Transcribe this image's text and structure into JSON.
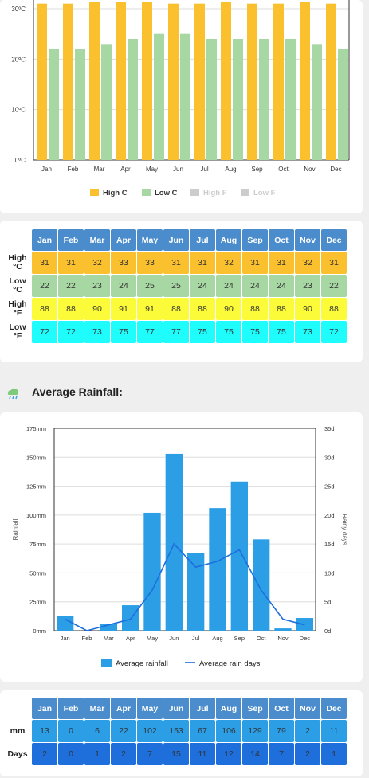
{
  "months": [
    "Jan",
    "Feb",
    "Mar",
    "Apr",
    "May",
    "Jun",
    "Jul",
    "Aug",
    "Sep",
    "Oct",
    "Nov",
    "Dec"
  ],
  "temp_section": {
    "row_labels": {
      "high_c": [
        "High",
        "°C"
      ],
      "low_c": [
        "Low",
        "°C"
      ],
      "high_f": [
        "High",
        "°F"
      ],
      "low_f": [
        "Low",
        "°F"
      ]
    }
  },
  "rain_section": {
    "title": "Average Rainfall:",
    "row_labels": {
      "mm": "mm",
      "days": "Days"
    }
  },
  "colors": {
    "high_c": "#fbc02d",
    "low_c": "#a7d7a2",
    "high_f": "#fbfb3a",
    "low_f": "#1ffcfc",
    "rain_bar": "#2b9ee6",
    "rain_line": "#1e6fdc",
    "legend_off": "#cccccc"
  },
  "chart_data": [
    {
      "type": "bar",
      "categories": [
        "Jan",
        "Feb",
        "Mar",
        "Apr",
        "May",
        "Jun",
        "Jul",
        "Aug",
        "Sep",
        "Oct",
        "Nov",
        "Dec"
      ],
      "series": [
        {
          "name": "High C",
          "values": [
            31,
            31,
            32,
            33,
            33,
            31,
            31,
            32,
            31,
            31,
            32,
            31
          ],
          "visible": true
        },
        {
          "name": "Low C",
          "values": [
            22,
            22,
            23,
            24,
            25,
            25,
            24,
            24,
            24,
            24,
            23,
            22
          ],
          "visible": true
        },
        {
          "name": "High F",
          "values": [
            88,
            88,
            90,
            91,
            91,
            88,
            88,
            90,
            88,
            88,
            90,
            88
          ],
          "visible": false
        },
        {
          "name": "Low F",
          "values": [
            72,
            72,
            73,
            75,
            77,
            77,
            75,
            75,
            75,
            75,
            73,
            72
          ],
          "visible": false
        }
      ],
      "ylim": [
        0,
        30
      ],
      "yticks": [
        "0ºC",
        "10ºC",
        "20ºC",
        "30ºC"
      ],
      "legend": "bottom"
    },
    {
      "type": "bar",
      "categories": [
        "Jan",
        "Feb",
        "Mar",
        "Apr",
        "May",
        "Jun",
        "Jul",
        "Aug",
        "Sep",
        "Oct",
        "Nov",
        "Dec"
      ],
      "series": [
        {
          "name": "Average rainfall",
          "type": "bar",
          "axis": "left",
          "values": [
            13,
            0,
            6,
            22,
            102,
            153,
            67,
            106,
            129,
            79,
            2,
            11
          ]
        },
        {
          "name": "Average rain days",
          "type": "line",
          "axis": "right",
          "values": [
            2,
            0,
            1,
            2,
            7,
            15,
            11,
            12,
            14,
            7,
            2,
            1
          ]
        }
      ],
      "ylabel": "Rainfall",
      "y2label": "Rainy days",
      "ylim": [
        0,
        175
      ],
      "y2lim": [
        0,
        35
      ],
      "yticks": [
        "0mm",
        "25mm",
        "50mm",
        "75mm",
        "100mm",
        "125mm",
        "150mm",
        "175mm"
      ],
      "y2ticks": [
        "0d",
        "5d",
        "10d",
        "15d",
        "20d",
        "25d",
        "30d",
        "35d"
      ],
      "legend": "bottom"
    }
  ]
}
